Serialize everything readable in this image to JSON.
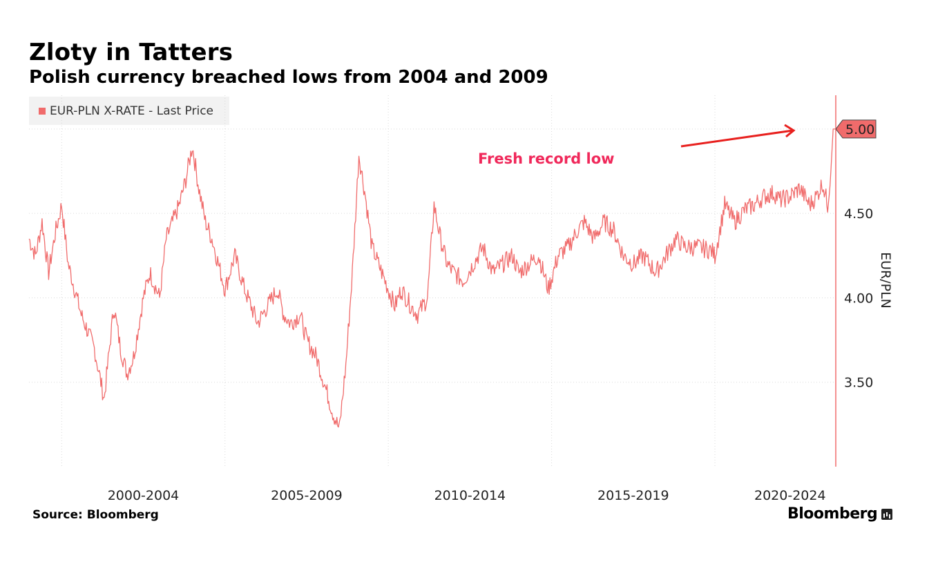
{
  "header": {
    "title": "Zloty in Tatters",
    "subtitle": "Polish currency breached lows from 2004 and 2009"
  },
  "footer": {
    "source": "Source: Bloomberg",
    "brand": "Bloomberg"
  },
  "colors": {
    "series": "#f06b6b",
    "annotation": "#f0285a",
    "arrow": "#e8201e",
    "grid": "#d9d9d9",
    "legend_bg": "#f2f2f2"
  },
  "chart_data": {
    "type": "line",
    "title": "Zloty in Tatters",
    "subtitle": "Polish currency breached lows from 2004 and 2009",
    "legend": [
      "EUR-PLN X-RATE - Last Price"
    ],
    "xlabel": "",
    "ylabel": "EUR/PLN",
    "categories": [
      "2000-2004",
      "2005-2009",
      "2010-2014",
      "2015-2019",
      "2020-2024"
    ],
    "yticks": [
      "3.50",
      "4.00",
      "4.50"
    ],
    "ylim": [
      3.0,
      5.2
    ],
    "xlim": [
      1999.0,
      2023.7
    ],
    "last_price_label": "5.00",
    "annotation": "Fresh record low",
    "series": [
      {
        "name": "EUR-PLN X-RATE - Last Price",
        "x": [
          1999.0,
          1999.2,
          1999.4,
          1999.6,
          1999.8,
          2000.0,
          2000.2,
          2000.4,
          2000.6,
          2000.8,
          2001.0,
          2001.3,
          2001.6,
          2001.8,
          2002.0,
          2002.2,
          2002.5,
          2002.7,
          2003.0,
          2003.2,
          2003.4,
          2003.6,
          2003.8,
          2004.0,
          2004.2,
          2004.4,
          2004.6,
          2004.8,
          2005.0,
          2005.3,
          2005.6,
          2005.8,
          2006.0,
          2006.3,
          2006.6,
          2006.8,
          2007.0,
          2007.3,
          2007.5,
          2007.8,
          2008.0,
          2008.3,
          2008.5,
          2008.7,
          2008.9,
          2009.1,
          2009.3,
          2009.5,
          2009.8,
          2010.0,
          2010.2,
          2010.4,
          2010.7,
          2010.9,
          2011.2,
          2011.4,
          2011.6,
          2011.8,
          2012.0,
          2012.3,
          2012.6,
          2012.9,
          2013.2,
          2013.5,
          2013.8,
          2014.0,
          2014.3,
          2014.6,
          2014.9,
          2015.2,
          2015.5,
          2015.8,
          2016.0,
          2016.3,
          2016.6,
          2016.9,
          2017.2,
          2017.5,
          2017.8,
          2018.2,
          2018.5,
          2018.8,
          2019.1,
          2019.5,
          2019.9,
          2020.0,
          2020.3,
          2020.6,
          2020.9,
          2021.2,
          2021.5,
          2021.8,
          2022.0,
          2022.3,
          2022.6,
          2022.9,
          2023.1,
          2023.3,
          2023.45,
          2023.55,
          2023.62,
          2023.7
        ],
        "values": [
          4.35,
          4.25,
          4.45,
          4.15,
          4.38,
          4.55,
          4.2,
          4.05,
          3.9,
          3.8,
          3.7,
          3.4,
          3.95,
          3.7,
          3.55,
          3.65,
          4.0,
          4.15,
          4.0,
          4.35,
          4.45,
          4.55,
          4.7,
          4.9,
          4.65,
          4.45,
          4.35,
          4.2,
          4.05,
          4.25,
          4.05,
          3.95,
          3.85,
          3.95,
          4.05,
          3.9,
          3.85,
          3.9,
          3.75,
          3.65,
          3.52,
          3.32,
          3.22,
          3.6,
          4.15,
          4.85,
          4.6,
          4.3,
          4.15,
          4.05,
          3.95,
          4.05,
          3.95,
          3.9,
          4.0,
          4.55,
          4.35,
          4.2,
          4.15,
          4.1,
          4.2,
          4.3,
          4.15,
          4.2,
          4.25,
          4.15,
          4.2,
          4.25,
          4.05,
          4.25,
          4.3,
          4.4,
          4.45,
          4.35,
          4.45,
          4.4,
          4.25,
          4.2,
          4.25,
          4.15,
          4.25,
          4.35,
          4.3,
          4.3,
          4.28,
          4.25,
          4.55,
          4.45,
          4.52,
          4.55,
          4.6,
          4.62,
          4.58,
          4.6,
          4.65,
          4.55,
          4.6,
          4.68,
          4.55,
          4.75,
          5.0,
          5.0
        ]
      }
    ]
  }
}
